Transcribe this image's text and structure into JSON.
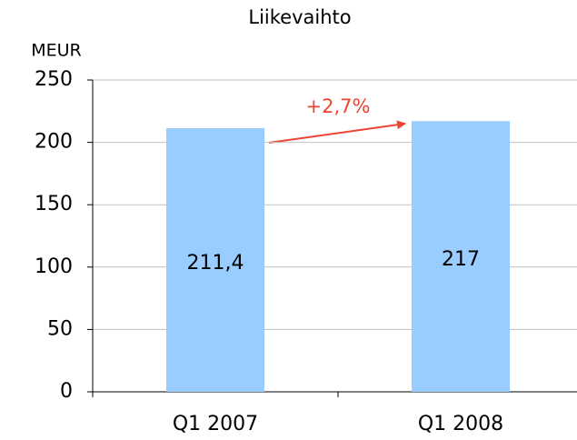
{
  "chart_data": {
    "type": "bar",
    "title": "Liikevaihto",
    "y_label": "MEUR",
    "categories": [
      "Q1 2007",
      "Q1 2008"
    ],
    "values": [
      211.4,
      217
    ],
    "value_labels": [
      "211,4",
      "217"
    ],
    "color": "#99ccff",
    "ylim": [
      0,
      250
    ],
    "yticks": [
      0,
      50,
      100,
      150,
      200,
      250
    ],
    "grid": true,
    "annotations": [
      "+2,7%"
    ]
  }
}
